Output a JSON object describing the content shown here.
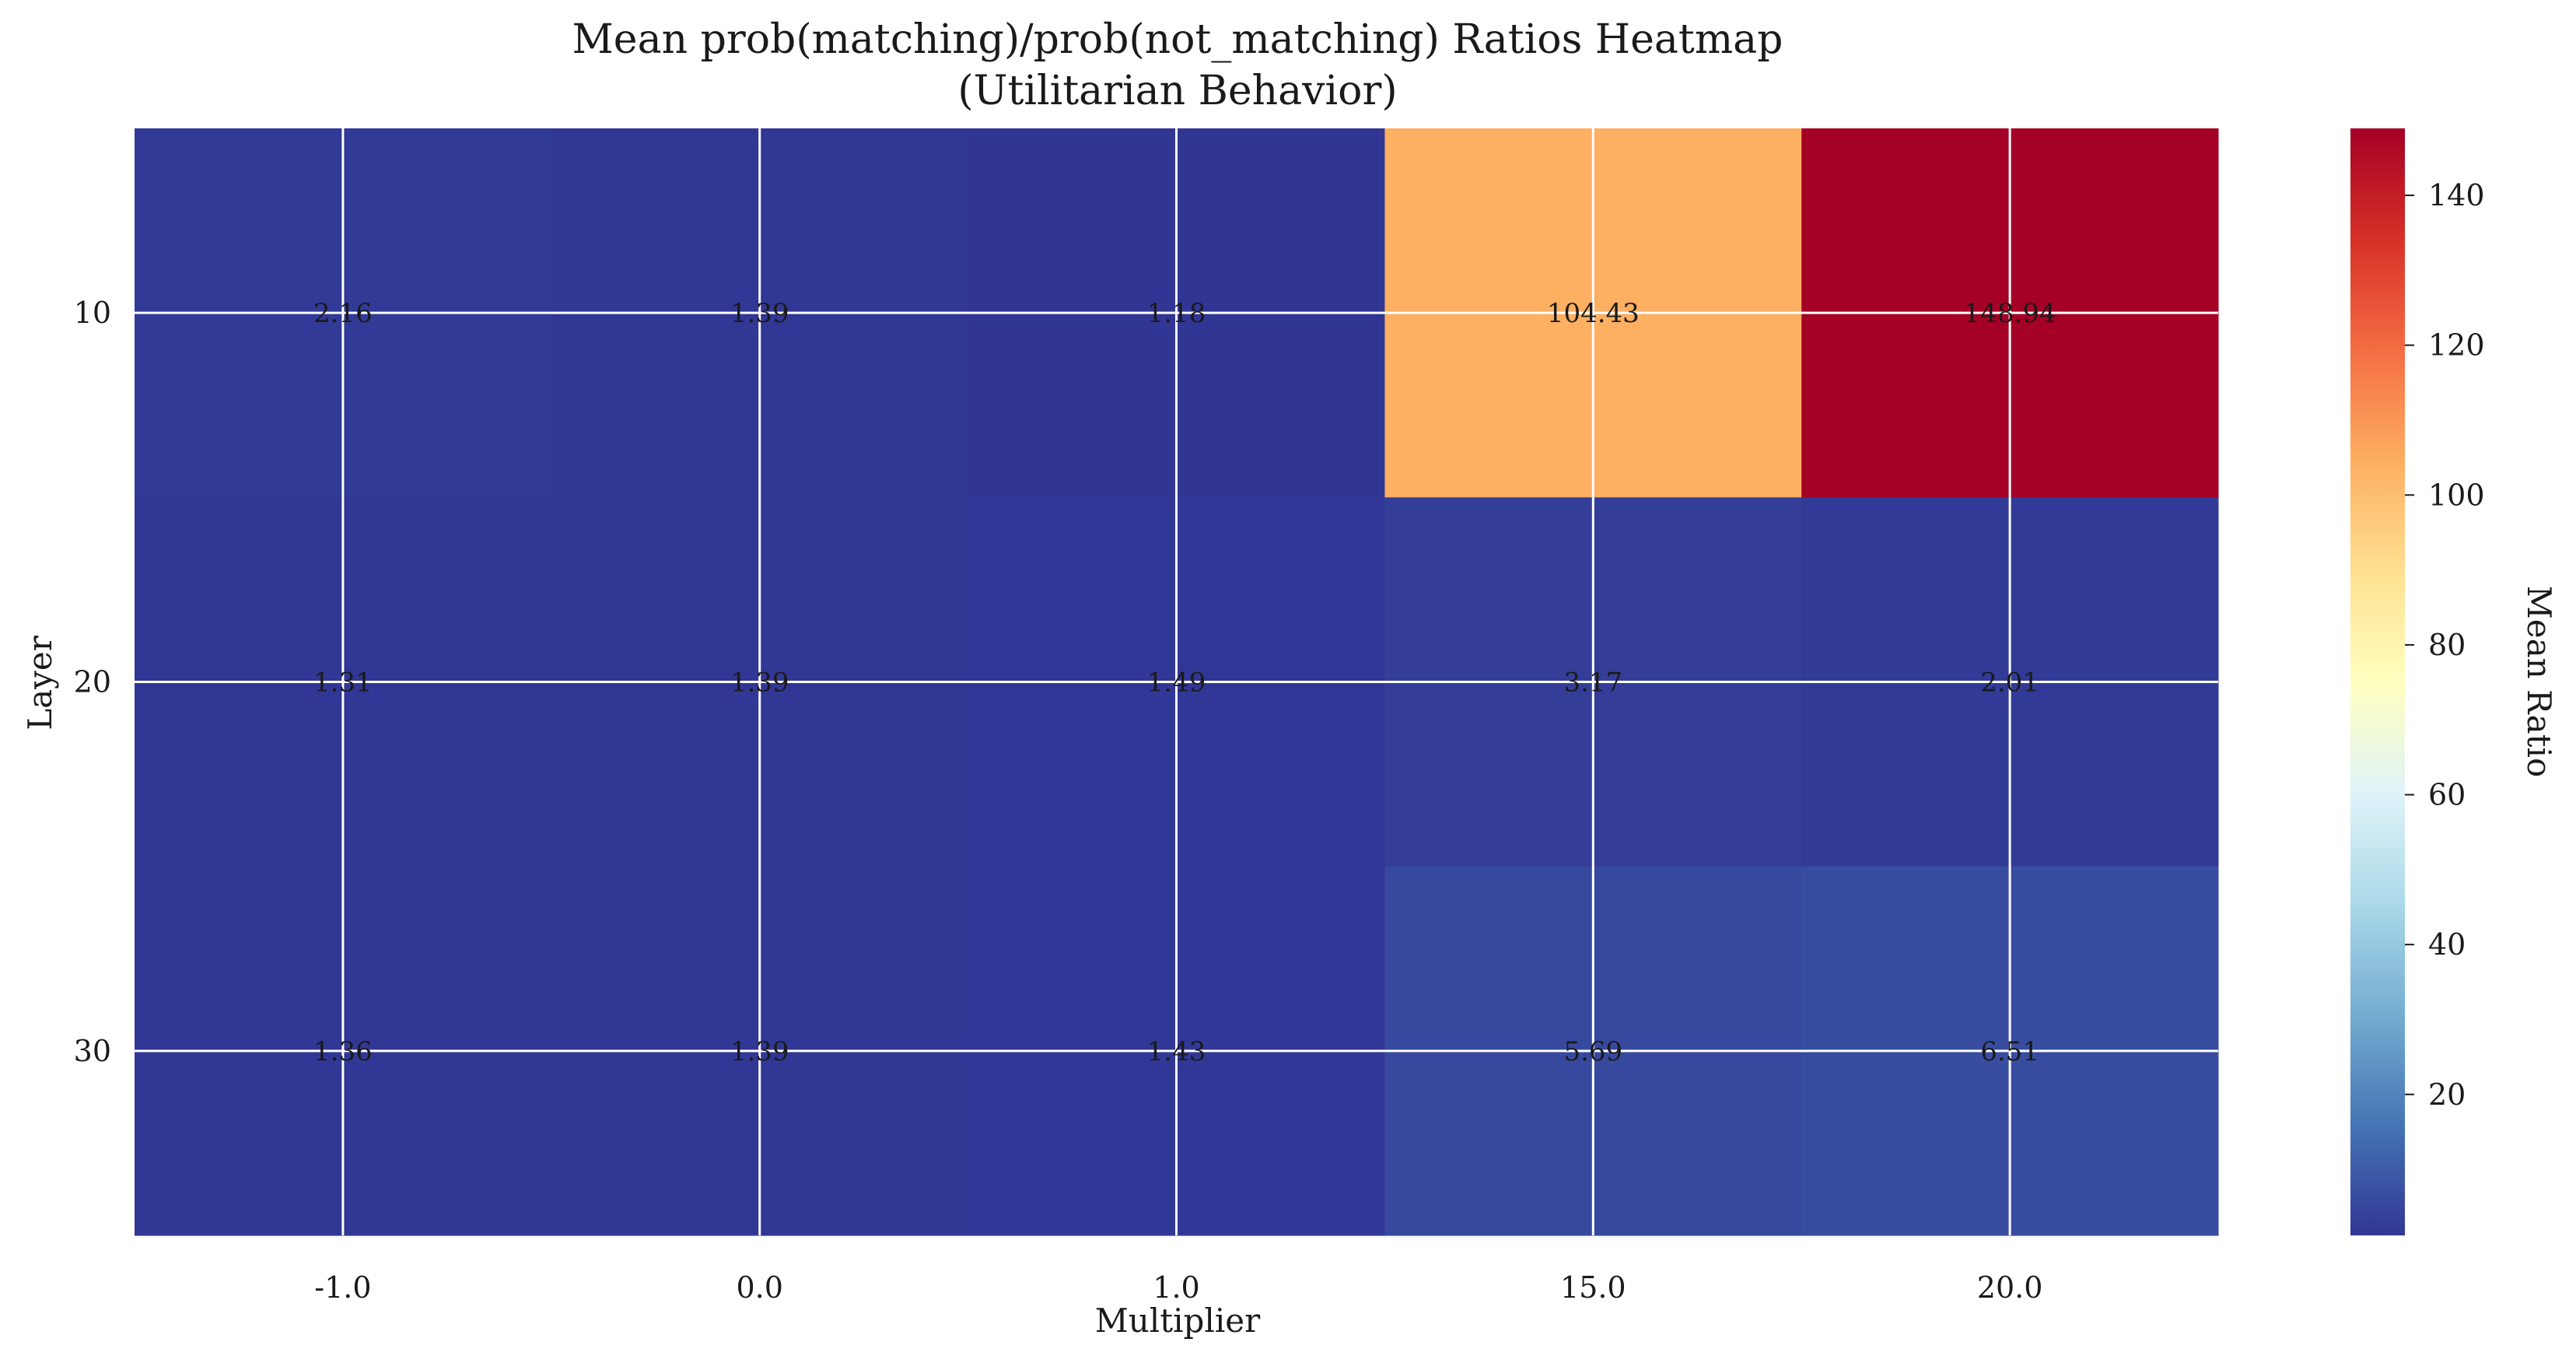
{
  "chart_data": {
    "type": "heatmap",
    "title": "Mean prob(matching)/prob(not_matching) Ratios Heatmap",
    "subtitle": "(Utilitarian Behavior)",
    "xlabel": "Multiplier",
    "ylabel": "Layer",
    "x": [
      "-1.0",
      "0.0",
      "1.0",
      "15.0",
      "20.0"
    ],
    "y": [
      "10",
      "20",
      "30"
    ],
    "values": [
      [
        2.16,
        1.39,
        1.18,
        104.43,
        148.94
      ],
      [
        1.31,
        1.39,
        1.49,
        3.17,
        2.01
      ],
      [
        1.36,
        1.39,
        1.43,
        5.69,
        6.51
      ]
    ],
    "cell_labels": [
      [
        "2.16",
        "1.39",
        "1.18",
        "104.43",
        "148.94"
      ],
      [
        "1.31",
        "1.39",
        "1.49",
        "3.17",
        "2.01"
      ],
      [
        "1.36",
        "1.39",
        "1.43",
        "5.69",
        "6.51"
      ]
    ],
    "colormap": "RdYlBu_r",
    "colorbar": {
      "label": "Mean Ratio",
      "range": [
        1.18,
        148.94
      ],
      "ticks": [
        "20",
        "40",
        "60",
        "80",
        "100",
        "120",
        "140"
      ],
      "tick_values": [
        20,
        40,
        60,
        80,
        100,
        120,
        140
      ]
    },
    "grid": true
  }
}
